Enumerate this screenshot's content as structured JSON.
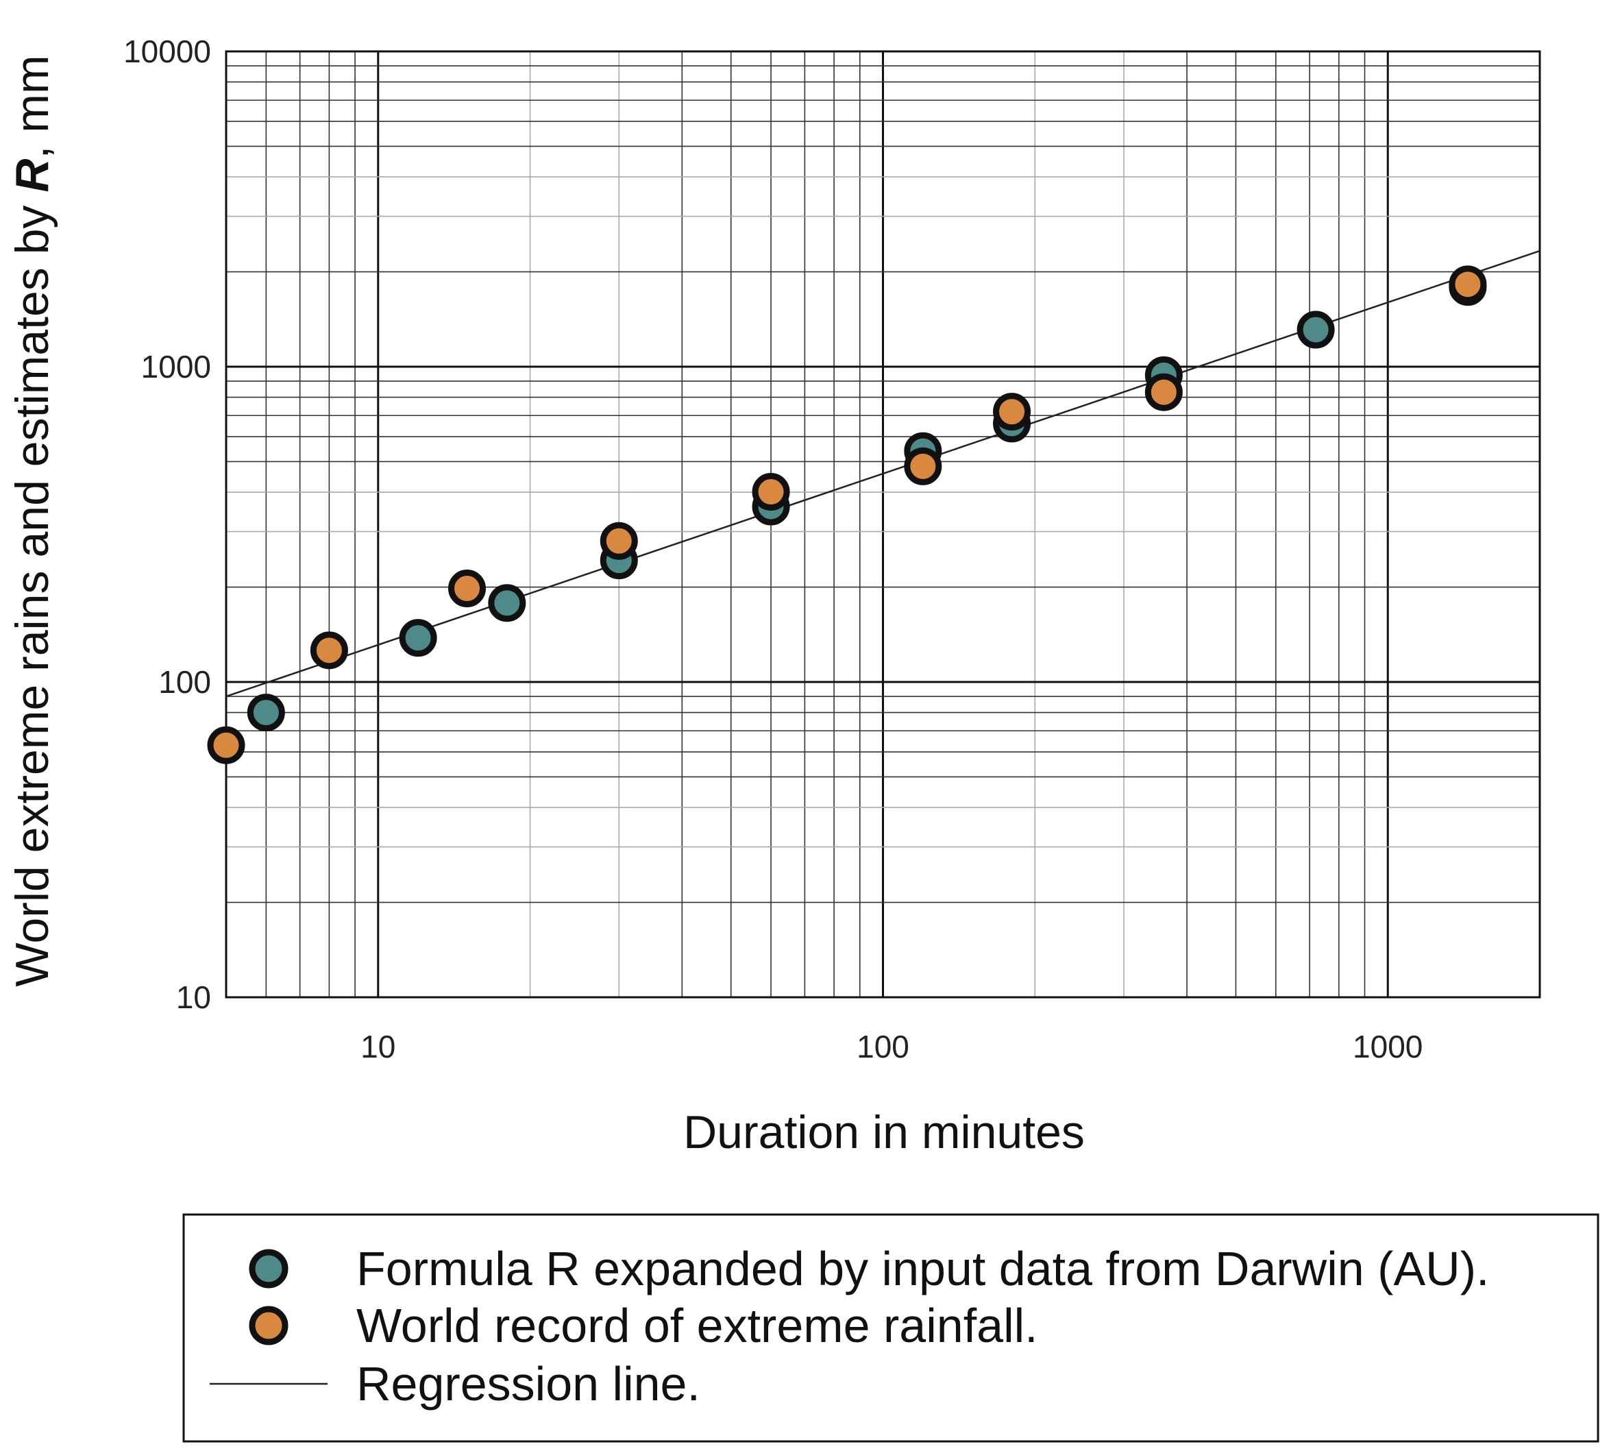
{
  "chart_data": {
    "type": "scatter",
    "xscale": "log",
    "yscale": "log",
    "xlim": [
      5,
      2000
    ],
    "ylim": [
      10,
      10000
    ],
    "grid": true,
    "xlabel": "Duration in minutes",
    "ylabel": {
      "prefix": "World extreme rains and estimates by ",
      "symbol": "R",
      "suffix": ", mm"
    },
    "x_ticks": [
      {
        "value": 10,
        "label": "10"
      },
      {
        "value": 100,
        "label": "100"
      },
      {
        "value": 1000,
        "label": "1000"
      }
    ],
    "y_ticks": [
      {
        "value": 10,
        "label": "10"
      },
      {
        "value": 100,
        "label": "100"
      },
      {
        "value": 1000,
        "label": "1000"
      },
      {
        "value": 10000,
        "label": "10000"
      }
    ],
    "series": [
      {
        "name": "Formula R expanded by input data from Darwin (AU).",
        "color": "#4e8a8a",
        "marker": "circle",
        "points": [
          {
            "x": 6,
            "y": 80
          },
          {
            "x": 12,
            "y": 138
          },
          {
            "x": 18,
            "y": 178
          },
          {
            "x": 30,
            "y": 243
          },
          {
            "x": 60,
            "y": 360
          },
          {
            "x": 120,
            "y": 540
          },
          {
            "x": 180,
            "y": 660
          },
          {
            "x": 360,
            "y": 940
          },
          {
            "x": 720,
            "y": 1310
          },
          {
            "x": 1440,
            "y": 1790
          }
        ]
      },
      {
        "name": "World record of extreme rainfall.",
        "color": "#d9893f",
        "marker": "circle",
        "points": [
          {
            "x": 5,
            "y": 63
          },
          {
            "x": 8,
            "y": 126
          },
          {
            "x": 15,
            "y": 198
          },
          {
            "x": 30,
            "y": 280
          },
          {
            "x": 60,
            "y": 401
          },
          {
            "x": 120,
            "y": 483
          },
          {
            "x": 180,
            "y": 720
          },
          {
            "x": 360,
            "y": 830
          },
          {
            "x": 1440,
            "y": 1825
          }
        ]
      },
      {
        "name": "Regression line.",
        "color": "#222222",
        "marker": "line",
        "points": [
          {
            "x": 5,
            "y": 90
          },
          {
            "x": 2000,
            "y": 2330
          }
        ]
      }
    ],
    "legend": {
      "position": "bottom",
      "frame": true
    }
  }
}
